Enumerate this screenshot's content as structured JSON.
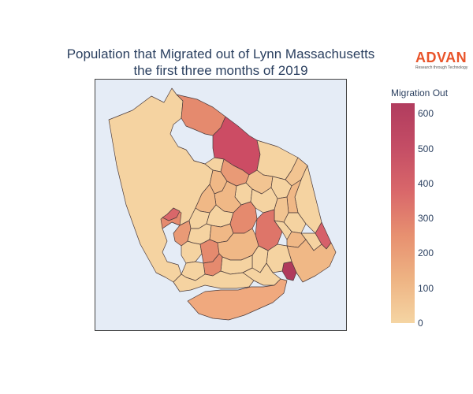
{
  "title": {
    "line1": "Population that Migrated out of Lynn Massachusetts",
    "line2": "the first three months of 2019"
  },
  "logo": {
    "word": "ADVAN",
    "tagline": "Research through Technology",
    "color": "#e9542a"
  },
  "colorbar": {
    "title": "Migration Out",
    "ticks": [
      "600",
      "500",
      "400",
      "300",
      "200",
      "100",
      "0"
    ],
    "range": [
      0,
      630
    ],
    "colors": [
      "#f5d5a3",
      "#eeb383",
      "#e79070",
      "#d9676a",
      "#c44d65",
      "#b13c5e"
    ]
  },
  "map": {
    "background": "#e5ecf6",
    "border_color": "#444444"
  }
}
